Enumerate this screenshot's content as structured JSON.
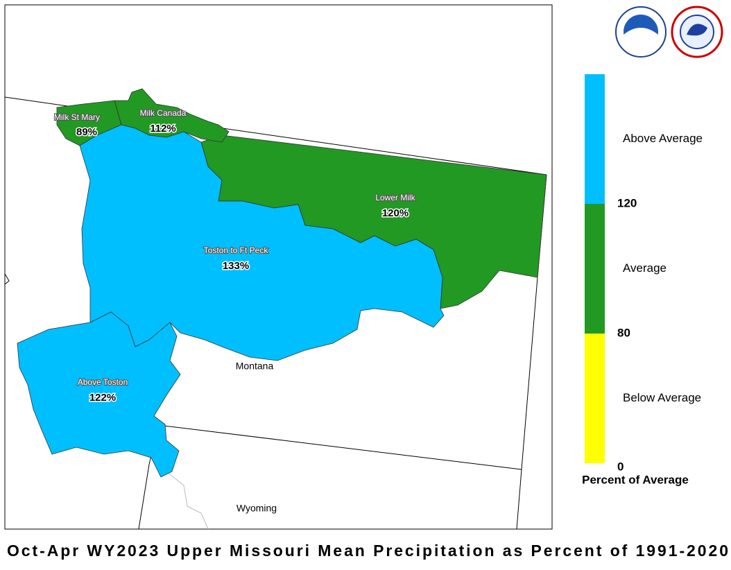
{
  "title": "Oct-Apr WY2023 Upper Missouri Mean Precipitation as Percent of 1991-2020",
  "regions": [
    {
      "name": "Milk St Mary",
      "percent": "89%"
    },
    {
      "name": "Milk Canada",
      "percent": "112%"
    },
    {
      "name": "Lower Milk",
      "percent": "120%"
    },
    {
      "name": "Toston to Ft Peck",
      "percent": "133%"
    },
    {
      "name": "Above Toston",
      "percent": "122%"
    }
  ],
  "states": [
    "Montana",
    "Wyoming"
  ],
  "legend": {
    "title": "Percent of Average",
    "classes": [
      {
        "label": "Above Average",
        "color": "#00bfff"
      },
      {
        "label": "Average",
        "color": "#229922"
      },
      {
        "label": "Below Average",
        "color": "#ffff00"
      }
    ],
    "breaks": [
      120,
      80,
      0
    ]
  }
}
